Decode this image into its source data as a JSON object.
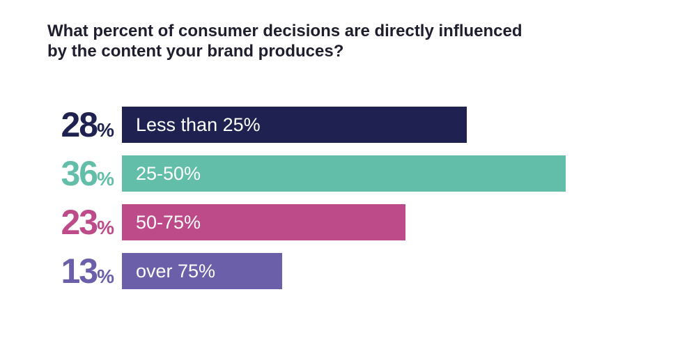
{
  "chart_data": {
    "type": "bar",
    "orientation": "horizontal",
    "title": "What percent of consumer decisions are directly influenced by the content your brand produces?",
    "categories": [
      "Less than 25%",
      "25-50%",
      "50-75%",
      "over 75%"
    ],
    "values": [
      28,
      36,
      23,
      13
    ],
    "value_labels": [
      "28",
      "36",
      "23",
      "13"
    ],
    "value_suffix": "%",
    "colors": [
      "#1f2250",
      "#62bea8",
      "#bd4b8a",
      "#6a5fa8"
    ],
    "xlim": [
      0,
      36
    ],
    "grid": false,
    "legend": "none"
  }
}
